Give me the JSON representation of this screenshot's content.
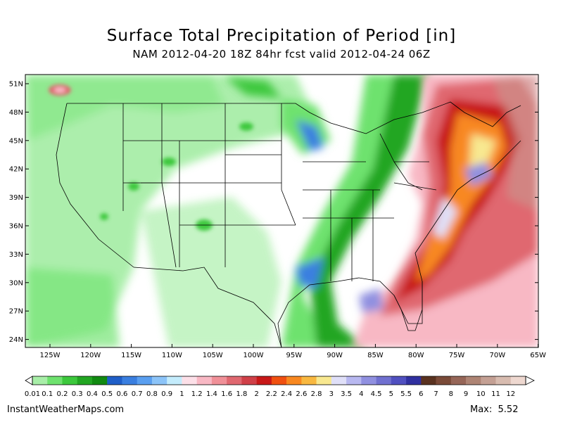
{
  "header": {
    "title": "Surface Total Precipitation of Period [in]",
    "subtitle": "NAM 2012-04-20 18Z 84hr fcst valid 2012-04-24 06Z"
  },
  "map": {
    "lat_labels": [
      "51N",
      "48N",
      "45N",
      "42N",
      "39N",
      "36N",
      "33N",
      "30N",
      "27N",
      "24N"
    ],
    "lon_labels": [
      "125W",
      "120W",
      "115W",
      "110W",
      "105W",
      "100W",
      "95W",
      "90W",
      "85W",
      "80W",
      "75W",
      "70W",
      "65W"
    ]
  },
  "colorbar": {
    "labels": [
      "0.01",
      "0.1",
      "0.2",
      "0.3",
      "0.4",
      "0.5",
      "0.6",
      "0.7",
      "0.8",
      "0.9",
      "1",
      "1.2",
      "1.4",
      "1.6",
      "1.8",
      "2",
      "2.2",
      "2.4",
      "2.6",
      "2.8",
      "3",
      "3.5",
      "4",
      "4.5",
      "5",
      "5.5",
      "6",
      "7",
      "8",
      "9",
      "10",
      "11",
      "12"
    ],
    "colors": [
      "#a8eea8",
      "#6ee26e",
      "#3cc83c",
      "#22a622",
      "#118a11",
      "#1f5fc8",
      "#3a7fe0",
      "#5a9ff0",
      "#8cc4f8",
      "#c4ecfc",
      "#fce0e8",
      "#f8b8c4",
      "#f09098",
      "#e06870",
      "#d04048",
      "#c81818",
      "#f05010",
      "#f88820",
      "#f8b840",
      "#f8e890",
      "#e0e0f8",
      "#b8b8f0",
      "#9090e0",
      "#7070d0",
      "#5050c0",
      "#3030a0",
      "#5a3220",
      "#7a4a38",
      "#966658",
      "#ae8474",
      "#c4a094",
      "#d8bcb0",
      "#eed8d0"
    ]
  },
  "footer": {
    "source": "InstantWeatherMaps.com",
    "max_label": "Max:  5.52"
  }
}
